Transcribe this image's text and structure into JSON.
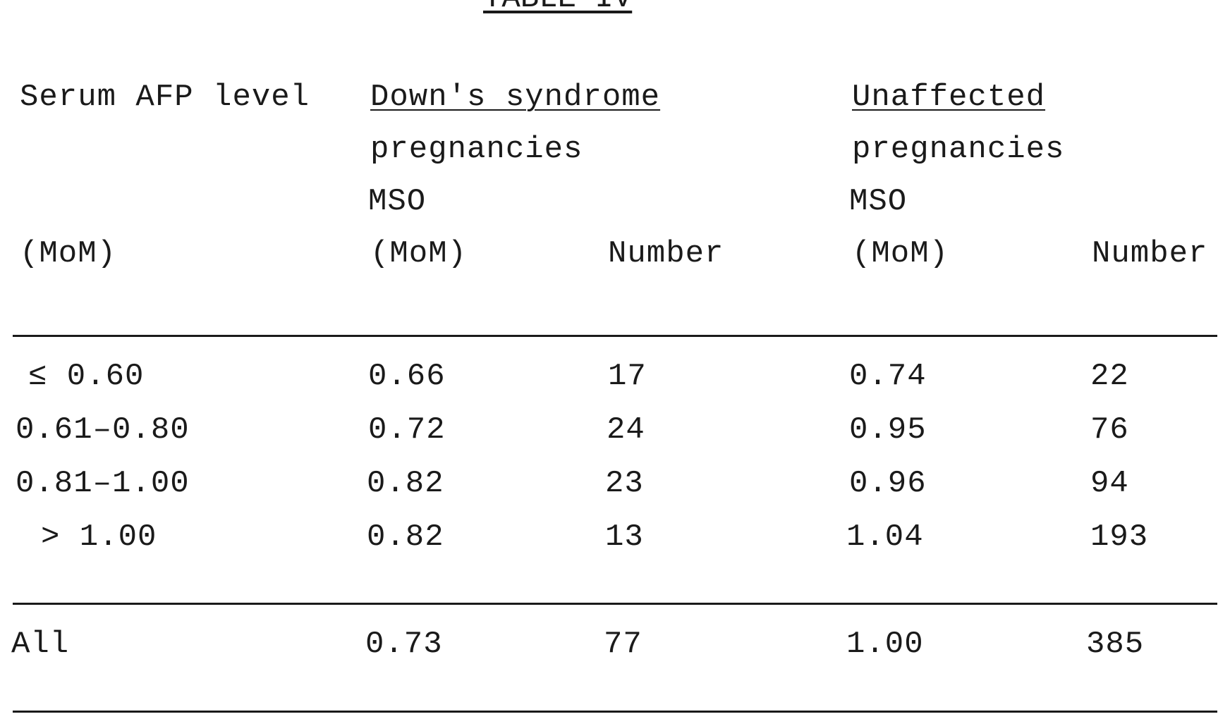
{
  "title": "TABLE IV",
  "header": {
    "col1_line1": "Serum AFP level",
    "col1_line4": "(MoM)",
    "group1_line1": "Down's syndrome",
    "group1_line2": "pregnancies",
    "group2_line1": "Unaffected",
    "group2_line2": "pregnancies",
    "mso_label": "MSO",
    "mom_label": "(MoM)",
    "number_label": "Number"
  },
  "rows": [
    {
      "level": "≤ 0.60",
      "ds_mso": "0.66",
      "ds_number": "17",
      "un_mso": "0.74",
      "un_number": "22"
    },
    {
      "level": "0.61–0.80",
      "ds_mso": "0.72",
      "ds_number": "24",
      "un_mso": "0.95",
      "un_number": "76"
    },
    {
      "level": "0.81–1.00",
      "ds_mso": "0.82",
      "ds_number": "23",
      "un_mso": "0.96",
      "un_number": "94"
    },
    {
      "level": "> 1.00",
      "ds_mso": "0.82",
      "ds_number": "13",
      "un_mso": "1.04",
      "un_number": "193"
    }
  ],
  "total": {
    "level": "All",
    "ds_mso": "0.73",
    "ds_number": "77",
    "un_mso": "1.00",
    "un_number": "385"
  }
}
